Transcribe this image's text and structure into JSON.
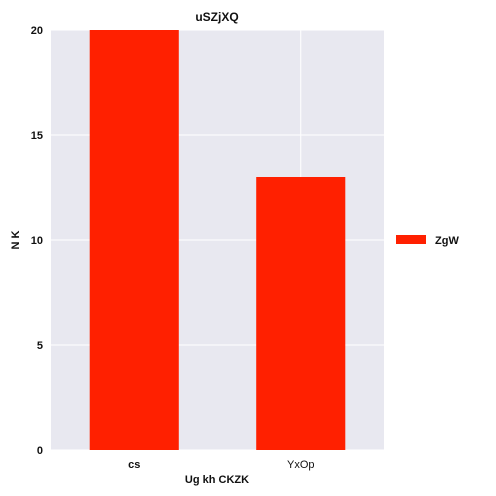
{
  "chart_data": {
    "type": "bar",
    "title": "uSZjXQ",
    "xlabel": "Ug kh CKZK",
    "ylabel": "N  K",
    "categories": [
      "cs",
      "YxOp"
    ],
    "series": [
      {
        "name": "ZgW",
        "values": [
          20,
          13
        ]
      }
    ],
    "ylim": [
      0,
      20
    ],
    "yticks": [
      "0",
      "5",
      "10",
      "15",
      "20"
    ],
    "grid": true,
    "legend_position": "right",
    "colors": {
      "background": "#e8e8f0",
      "grid": "#ffffff",
      "bar": "#ff2000"
    }
  }
}
